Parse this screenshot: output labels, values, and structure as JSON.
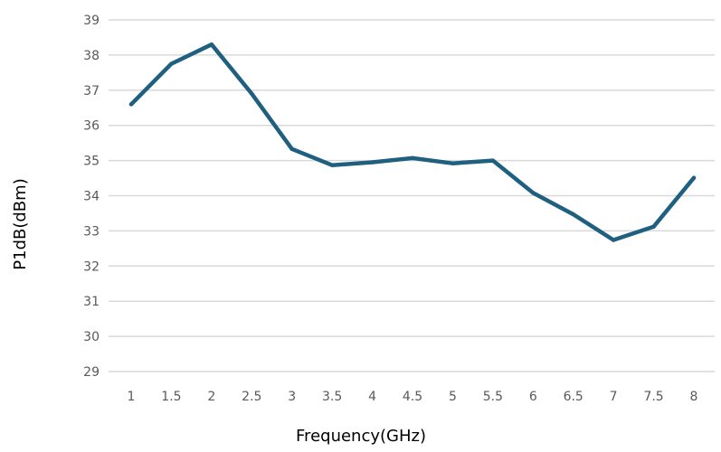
{
  "chart_data": {
    "type": "line",
    "title": "",
    "xlabel": "Frequency(GHz)",
    "ylabel": "P1dB(dBm)",
    "categories": [
      "1",
      "1.5",
      "2",
      "2.5",
      "3",
      "3.5",
      "4",
      "4.5",
      "5",
      "5.5",
      "6",
      "6.5",
      "7",
      "7.5",
      "8"
    ],
    "series": [
      {
        "name": "",
        "values": [
          36.6,
          37.75,
          38.3,
          36.9,
          35.33,
          34.87,
          34.95,
          35.07,
          34.92,
          35.0,
          34.08,
          33.47,
          32.74,
          33.12,
          34.51
        ]
      }
    ],
    "yticks": [
      29,
      30,
      31,
      32,
      33,
      34,
      35,
      36,
      37,
      38,
      39
    ],
    "ylim": [
      29,
      39
    ],
    "grid": "horizontal",
    "colors": {
      "line": "#1f5f7f",
      "grid": "#d9d9d9",
      "tick_text": "#595959",
      "axis_title": "#000000"
    }
  }
}
